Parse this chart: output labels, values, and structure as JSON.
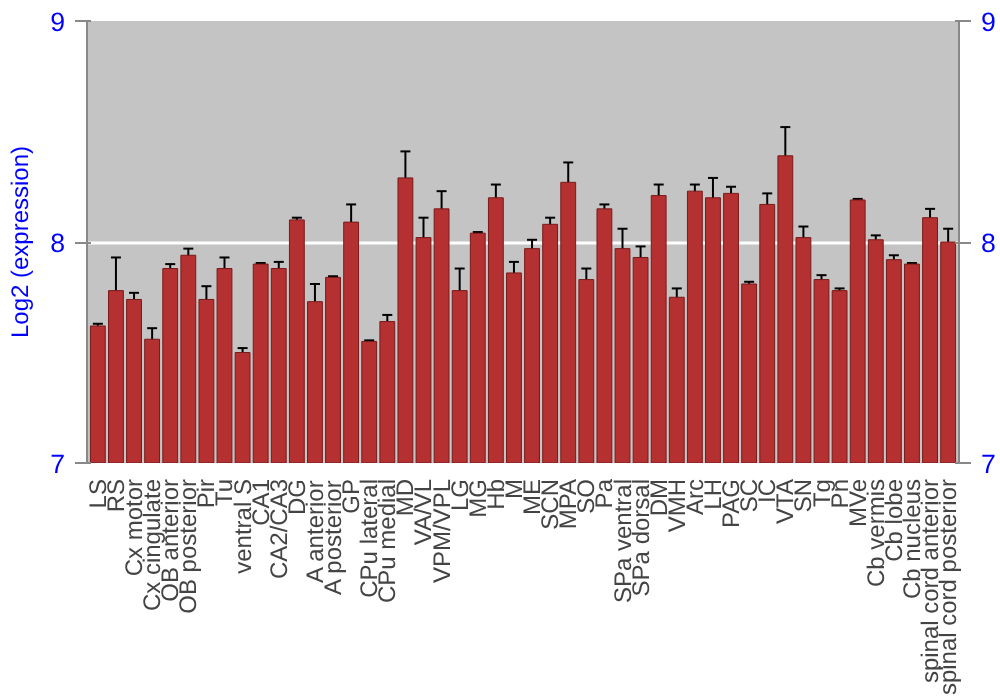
{
  "chart_data": {
    "type": "bar",
    "ylabel": "Log2 (expression)",
    "categories": [
      "LS",
      "RS",
      "Cx motor",
      "Cx cingulate",
      "OB anterior",
      "OB posterior",
      "Pir",
      "Tu",
      "ventral S",
      "CA1",
      "CA2/CA3",
      "DG",
      "A anterior",
      "A posterior",
      "GP",
      "CPu lateral",
      "CPu medial",
      "MD",
      "VA/VL",
      "VPM/VPL",
      "LG",
      "MG",
      "Hb",
      "M",
      "ME",
      "SCN",
      "MPA",
      "SO",
      "Pa",
      "SPa ventral",
      "SPa dorsal",
      "DM",
      "VMH",
      "Arc",
      "LH",
      "PAG",
      "SC",
      "IC",
      "VTA",
      "SN",
      "Tg",
      "Pn",
      "MVe",
      "Cb vermis",
      "Cb lobe",
      "Cb nucleus",
      "spinal cord anterior",
      "spinal cord posterior"
    ],
    "values": [
      7.62,
      7.78,
      7.74,
      7.56,
      7.88,
      7.94,
      7.74,
      7.88,
      7.5,
      7.9,
      7.88,
      8.1,
      7.73,
      7.84,
      8.09,
      7.55,
      7.64,
      8.29,
      8.02,
      8.15,
      7.78,
      8.04,
      8.2,
      7.86,
      7.97,
      8.08,
      8.27,
      7.83,
      8.15,
      7.97,
      7.93,
      8.21,
      7.75,
      8.23,
      8.2,
      8.22,
      7.81,
      8.17,
      8.39,
      8.02,
      7.83,
      7.78,
      8.19,
      8.01,
      7.92,
      7.9,
      8.11,
      8.0
    ],
    "errors": [
      0.01,
      0.15,
      0.03,
      0.05,
      0.02,
      0.03,
      0.06,
      0.05,
      0.02,
      0.005,
      0.03,
      0.01,
      0.08,
      0.005,
      0.08,
      0.005,
      0.03,
      0.12,
      0.09,
      0.08,
      0.1,
      0.005,
      0.06,
      0.05,
      0.04,
      0.03,
      0.09,
      0.05,
      0.02,
      0.09,
      0.05,
      0.05,
      0.04,
      0.03,
      0.09,
      0.03,
      0.01,
      0.05,
      0.13,
      0.05,
      0.02,
      0.01,
      0.005,
      0.02,
      0.02,
      0.005,
      0.04,
      0.06
    ],
    "color": "#b53030",
    "ylim": [
      7,
      9
    ],
    "yticks": [
      7,
      8,
      9
    ],
    "y2lim": [
      7,
      9
    ],
    "y2ticks": [
      7,
      8,
      9
    ],
    "grid": "y"
  }
}
